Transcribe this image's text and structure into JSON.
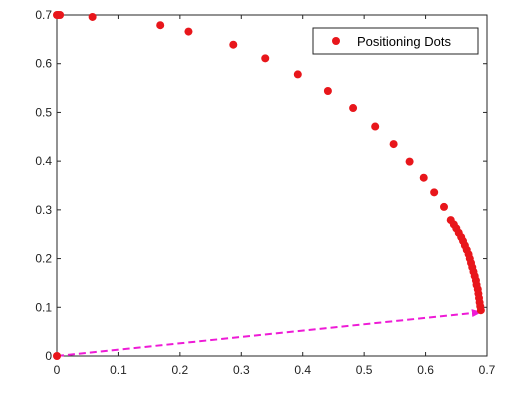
{
  "chart_data": {
    "type": "scatter",
    "xlim": [
      0,
      0.7
    ],
    "ylim": [
      0,
      0.7
    ],
    "x_ticks": [
      "0",
      "0.1",
      "0.2",
      "0.3",
      "0.4",
      "0.5",
      "0.6",
      "0.7"
    ],
    "y_ticks": [
      "0",
      "0.1",
      "0.2",
      "0.3",
      "0.4",
      "0.5",
      "0.6",
      "0.7"
    ],
    "grid": false,
    "legend_position": "top-right",
    "series": [
      {
        "name": "Positioning Dots",
        "color": "#e8161b",
        "points": [
          [
            0.0,
            0.0
          ],
          [
            0.0,
            0.7
          ],
          [
            0.002,
            0.7
          ],
          [
            0.005,
            0.7
          ],
          [
            0.058,
            0.696
          ],
          [
            0.168,
            0.679
          ],
          [
            0.214,
            0.666
          ],
          [
            0.287,
            0.639
          ],
          [
            0.339,
            0.611
          ],
          [
            0.392,
            0.578
          ],
          [
            0.441,
            0.544
          ],
          [
            0.482,
            0.509
          ],
          [
            0.518,
            0.471
          ],
          [
            0.548,
            0.435
          ],
          [
            0.574,
            0.399
          ],
          [
            0.597,
            0.366
          ],
          [
            0.614,
            0.336
          ],
          [
            0.63,
            0.306
          ],
          [
            0.641,
            0.279
          ],
          [
            0.646,
            0.27
          ],
          [
            0.65,
            0.262
          ],
          [
            0.654,
            0.253
          ],
          [
            0.658,
            0.244
          ],
          [
            0.661,
            0.236
          ],
          [
            0.664,
            0.227
          ],
          [
            0.667,
            0.218
          ],
          [
            0.67,
            0.209
          ],
          [
            0.672,
            0.2
          ],
          [
            0.674,
            0.191
          ],
          [
            0.676,
            0.182
          ],
          [
            0.678,
            0.173
          ],
          [
            0.68,
            0.164
          ],
          [
            0.682,
            0.155
          ],
          [
            0.683,
            0.146
          ],
          [
            0.685,
            0.137
          ],
          [
            0.686,
            0.128
          ],
          [
            0.687,
            0.119
          ],
          [
            0.688,
            0.11
          ],
          [
            0.689,
            0.102
          ],
          [
            0.69,
            0.094
          ]
        ]
      }
    ],
    "arrow": {
      "color": "#ee1bd6",
      "style": "dashed",
      "from": [
        0.0,
        0.0
      ],
      "to": [
        0.69,
        0.09
      ]
    }
  }
}
